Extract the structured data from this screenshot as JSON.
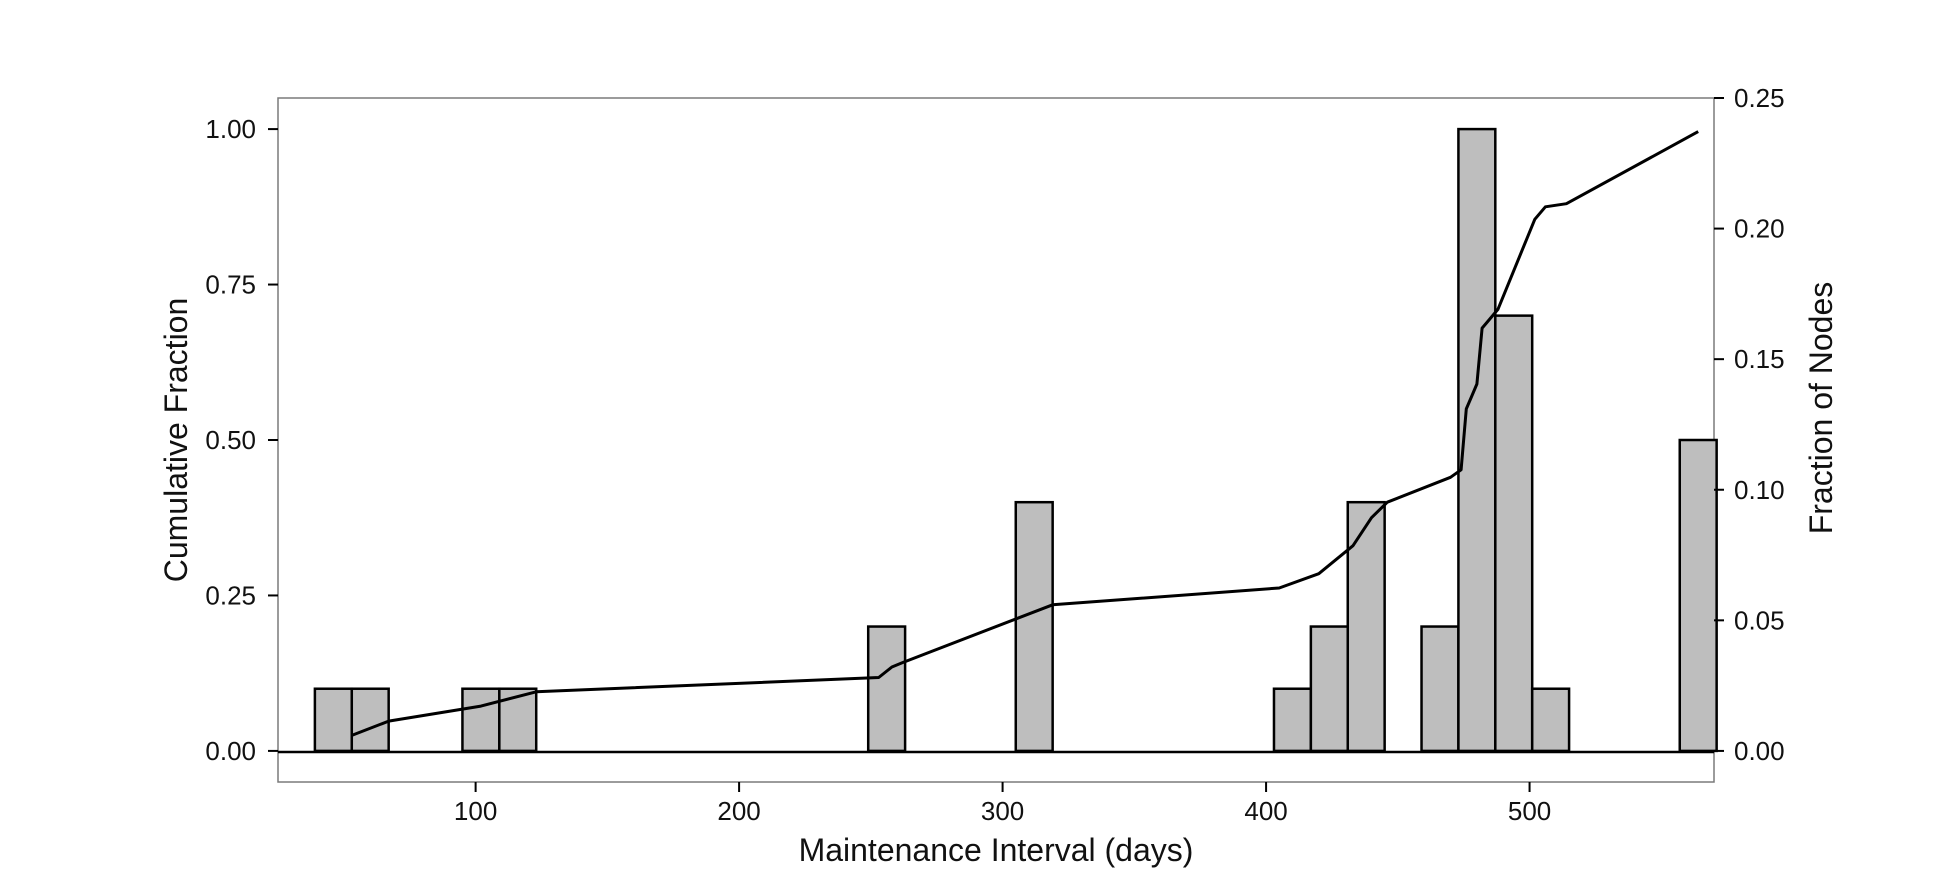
{
  "chart_data": {
    "type": "bar",
    "title": "",
    "xlabel": "Maintenance Interval (days)",
    "ylabel": "Cumulative Fraction",
    "y2label": "Fraction of Nodes",
    "xlim": [
      25,
      570
    ],
    "ylim": [
      -0.05,
      1.05
    ],
    "y2lim": [
      -0.0119,
      0.25
    ],
    "x_ticks": [
      "100",
      "200",
      "300",
      "400",
      "500"
    ],
    "x_tick_values": [
      100,
      200,
      300,
      400,
      500
    ],
    "y_ticks": [
      "0.00",
      "0.25",
      "0.50",
      "0.75",
      "1.00"
    ],
    "y_tick_values": [
      0,
      0.25,
      0.5,
      0.75,
      1.0
    ],
    "y2_ticks": [
      "0.00",
      "0.05",
      "0.10",
      "0.15",
      "0.20",
      "0.25"
    ],
    "y2_tick_values": [
      0,
      0.05,
      0.1,
      0.15,
      0.2,
      0.25
    ],
    "bin_width": 14,
    "bars": [
      {
        "x": 46,
        "height": 0.1
      },
      {
        "x": 60,
        "height": 0.1
      },
      {
        "x": 102,
        "height": 0.1
      },
      {
        "x": 116,
        "height": 0.1
      },
      {
        "x": 256,
        "height": 0.2
      },
      {
        "x": 312,
        "height": 0.4
      },
      {
        "x": 410,
        "height": 0.1
      },
      {
        "x": 424,
        "height": 0.2
      },
      {
        "x": 438,
        "height": 0.4
      },
      {
        "x": 466,
        "height": 0.2
      },
      {
        "x": 480,
        "height": 1.0
      },
      {
        "x": 494,
        "height": 0.7
      },
      {
        "x": 508,
        "height": 0.1
      },
      {
        "x": 564,
        "height": 0.5
      }
    ],
    "cumulative_line": {
      "x": [
        53,
        67,
        102,
        123,
        253,
        258,
        262,
        319,
        405,
        420,
        433,
        440,
        446,
        470,
        474,
        476,
        478,
        480,
        482,
        484,
        488,
        502,
        506,
        514,
        564
      ],
      "y": [
        0.025,
        0.048,
        0.072,
        0.095,
        0.118,
        0.135,
        0.142,
        0.235,
        0.262,
        0.285,
        0.33,
        0.375,
        0.4,
        0.44,
        0.452,
        0.55,
        0.57,
        0.59,
        0.68,
        0.69,
        0.71,
        0.855,
        0.875,
        0.88,
        0.996
      ]
    },
    "grid": false,
    "legend": "none",
    "colors": {
      "bar_fill": "#bebebe",
      "bar_stroke": "#000000",
      "line": "#000000",
      "frame": "#7a7a7a"
    }
  }
}
